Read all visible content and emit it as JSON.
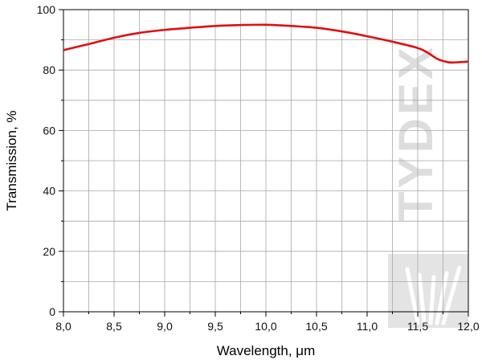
{
  "chart_data": {
    "type": "line",
    "xlabel": "Wavelength, μm",
    "ylabel": "Transmission, %",
    "xlim": [
      8.0,
      12.0
    ],
    "ylim": [
      0,
      100
    ],
    "x_ticks": [
      "8,0",
      "8,5",
      "9,0",
      "9,5",
      "10,0",
      "10,5",
      "11,0",
      "11,5",
      "12,0"
    ],
    "y_ticks": [
      "0",
      "20",
      "40",
      "60",
      "80",
      "100"
    ],
    "grid": true,
    "series": [
      {
        "color": "#e01010",
        "x": [
          8.0,
          8.25,
          8.5,
          8.75,
          9.0,
          9.25,
          9.5,
          9.75,
          10.0,
          10.25,
          10.5,
          10.75,
          11.0,
          11.25,
          11.5,
          11.6,
          11.7,
          11.8,
          11.85,
          11.9,
          12.0
        ],
        "y": [
          86.6,
          88.6,
          90.7,
          92.3,
          93.3,
          94.0,
          94.6,
          94.9,
          95.0,
          94.6,
          94.0,
          92.8,
          91.2,
          89.4,
          87.3,
          85.7,
          83.6,
          82.6,
          82.5,
          82.6,
          82.8
        ]
      }
    ],
    "watermark": "TYDEX"
  }
}
